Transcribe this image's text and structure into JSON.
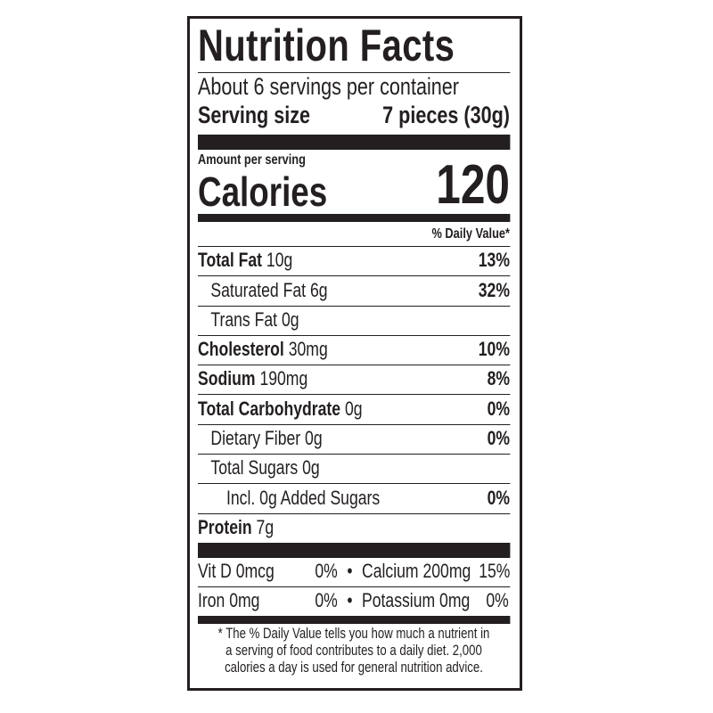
{
  "title": "Nutrition Facts",
  "servings_per_container": "About 6 servings per container",
  "serving_size": {
    "label": "Serving size",
    "value": "7 pieces (30g)"
  },
  "amount_per_serving": "Amount per serving",
  "calories": {
    "label": "Calories",
    "value": "120"
  },
  "daily_value_header": "% Daily Value*",
  "nutrients": [
    {
      "name": "Total Fat",
      "amount": "10g",
      "dv": "13%",
      "bold": true,
      "indent": 0
    },
    {
      "name": "Saturated Fat",
      "amount": "6g",
      "dv": "32%",
      "bold": false,
      "indent": 1
    },
    {
      "name": "Trans Fat",
      "amount": "0g",
      "dv": "",
      "bold": false,
      "indent": 1
    },
    {
      "name": "Cholesterol",
      "amount": "30mg",
      "dv": "10%",
      "bold": true,
      "indent": 0
    },
    {
      "name": "Sodium",
      "amount": "190mg",
      "dv": "8%",
      "bold": true,
      "indent": 0
    },
    {
      "name": "Total Carbohydrate",
      "amount": "0g",
      "dv": "0%",
      "bold": true,
      "indent": 0
    },
    {
      "name": "Dietary Fiber",
      "amount": "0g",
      "dv": "0%",
      "bold": false,
      "indent": 1
    },
    {
      "name": "Total Sugars",
      "amount": "0g",
      "dv": "",
      "bold": false,
      "indent": 1
    },
    {
      "name": "Incl. 0g Added Sugars",
      "amount": "",
      "dv": "0%",
      "bold": false,
      "indent": 2
    },
    {
      "name": "Protein",
      "amount": "7g",
      "dv": "",
      "bold": true,
      "indent": 0
    }
  ],
  "vitamins": [
    {
      "left": "Vit D 0mcg",
      "left_dv": "0%",
      "sep": "•",
      "right": "Calcium 200mg",
      "right_dv": "15%"
    },
    {
      "left": "Iron 0mg",
      "left_dv": "0%",
      "sep": "•",
      "right": "Potassium 0mg",
      "right_dv": "0%"
    }
  ],
  "footnote": [
    "* The % Daily Value tells you how much a nutrient in",
    "a serving of food contributes to a daily diet. 2,000",
    "calories a day is used for general nutrition advice."
  ]
}
